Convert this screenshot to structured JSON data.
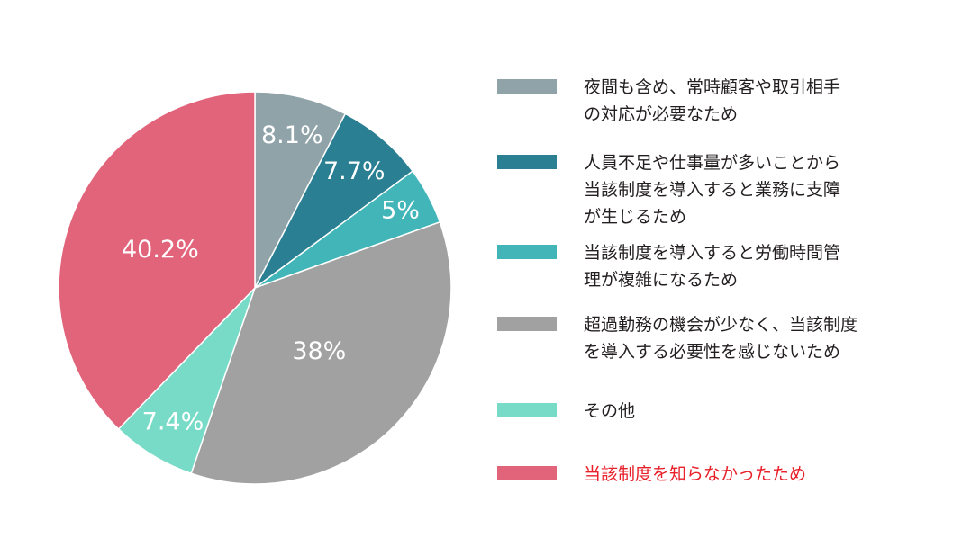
{
  "chart_data": {
    "type": "pie",
    "title": "",
    "start_angle": "12 o'clock",
    "direction": "clockwise",
    "categories": [
      "夜間も含め、常時顧客や取引相手の対応が必要なため",
      "人員不足や仕事量が多いことから当該制度を導入すると業務に支障が生じるため",
      "当該制度を導入すると労働時間管理が複雑になるため",
      "超過勤務の機会が少なく、当該制度を導入する必要性を感じないため",
      "その他",
      "当該制度を知らなかったため"
    ],
    "values": [
      8.1,
      7.7,
      5,
      38,
      7.4,
      40.2
    ],
    "data_labels": [
      "8.1%",
      "7.7%",
      "5%",
      "38%",
      "7.4%",
      "40.2%"
    ],
    "colors": [
      "#8fa3a9",
      "#2a7f92",
      "#42b5b8",
      "#a1a1a1",
      "#78dbc7",
      "#e2647b"
    ],
    "legend_placement": "right"
  },
  "legend": {
    "items": [
      {
        "label": "夜間も含め、常時顧客や取引相手\nの対応が必要なため",
        "color": "#8fa3a9",
        "text_color": "#231f20"
      },
      {
        "label": "人員不足や仕事量が多いことから\n当該制度を導入すると業務に支障\nが生じるため",
        "color": "#2a7f92",
        "text_color": "#231f20"
      },
      {
        "label": "当該制度を導入すると労働時間管\n理が複雑になるため",
        "color": "#42b5b8",
        "text_color": "#231f20"
      },
      {
        "label": "超過勤務の機会が少なく、当該制度\nを導入する必要性を感じないため",
        "color": "#a1a1a1",
        "text_color": "#231f20"
      },
      {
        "label": "その他",
        "color": "#78dbc7",
        "text_color": "#231f20"
      },
      {
        "label": "当該制度を知らなかったため",
        "color": "#e2647b",
        "text_color": "#e8202a"
      }
    ]
  }
}
